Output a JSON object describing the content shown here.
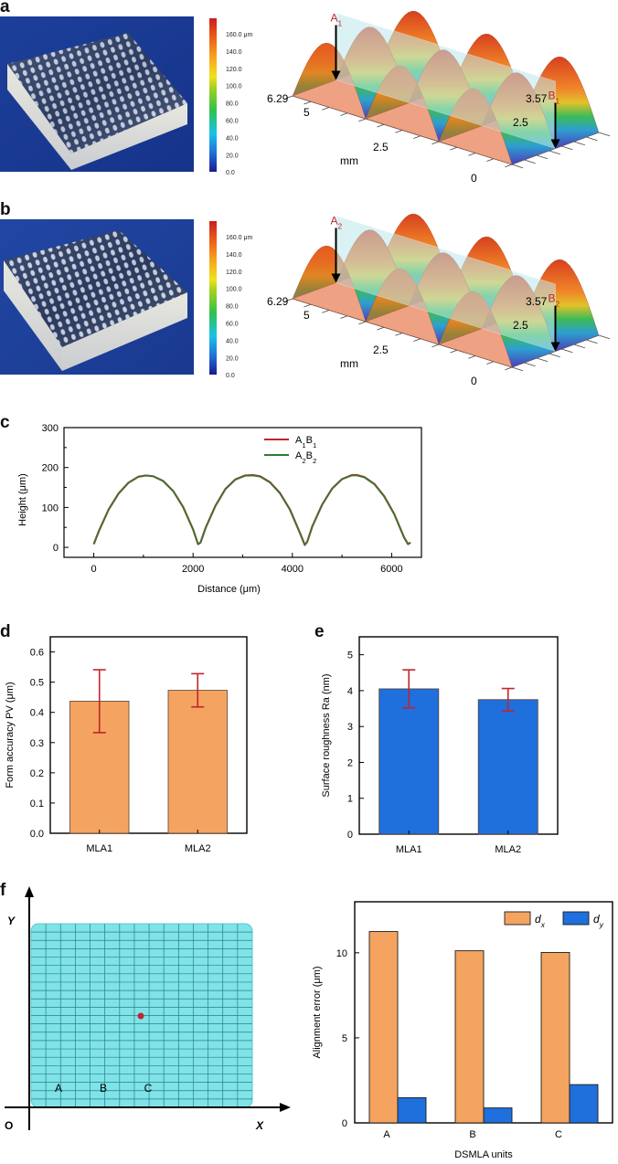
{
  "panels": {
    "a": {
      "label": "a"
    },
    "b": {
      "label": "b"
    },
    "c": {
      "label": "c"
    },
    "d": {
      "label": "d"
    },
    "e": {
      "label": "e"
    },
    "f": {
      "label": "f"
    }
  },
  "colorbar": {
    "unit": "μm",
    "ticks": [
      "160.0 μm",
      "140.0",
      "120.0",
      "100.0",
      "80.0",
      "60.0",
      "40.0",
      "20.0",
      "0.0"
    ],
    "range": [
      0,
      170
    ],
    "colors": [
      "#1a1a8c",
      "#1f6fd8",
      "#19c3e8",
      "#2fc24a",
      "#a4d21c",
      "#f1e11b",
      "#f7a21b",
      "#ec5a1a",
      "#c81e1e"
    ]
  },
  "surface_a": {
    "start_label": "A",
    "start_sub": "1",
    "end_label": "B",
    "end_sub": "1",
    "x_ticks": [
      "6.29",
      "5",
      "2.5"
    ],
    "y_ticks": [
      "3.57",
      "2.5",
      "0"
    ],
    "axis_unit": "mm"
  },
  "surface_b": {
    "start_label": "A",
    "start_sub": "2",
    "end_label": "B",
    "end_sub": "2",
    "x_ticks": [
      "6.29",
      "5",
      "2.5"
    ],
    "y_ticks": [
      "3.57",
      "2.5",
      "0"
    ],
    "axis_unit": "mm"
  },
  "chart_data": [
    {
      "id": "c",
      "type": "line",
      "title": "",
      "xlabel": "Distance (μm)",
      "ylabel": "Height (μm)",
      "xlim": [
        -600,
        6600
      ],
      "ylim": [
        -25,
        300
      ],
      "xticks": [
        0,
        2000,
        4000,
        6000
      ],
      "yticks": [
        0,
        100,
        200,
        300
      ],
      "legend": "top-center",
      "series": [
        {
          "name": "A1B1",
          "name_main1": "A",
          "name_sub1": "1",
          "name_main2": "B",
          "name_sub2": "1",
          "color": "#c0262c",
          "x": [
            0,
            100,
            300,
            500,
            700,
            900,
            1050,
            1200,
            1400,
            1600,
            1800,
            2000,
            2100,
            2150,
            2250,
            2450,
            2650,
            2850,
            3050,
            3200,
            3350,
            3550,
            3750,
            3950,
            4150,
            4250,
            4300,
            4400,
            4600,
            4800,
            5000,
            5200,
            5300,
            5450,
            5650,
            5850,
            6050,
            6250,
            6330,
            6380
          ],
          "y": [
            8,
            40,
            95,
            135,
            162,
            177,
            180,
            178,
            166,
            141,
            101,
            45,
            8,
            12,
            48,
            104,
            146,
            170,
            180,
            181,
            178,
            163,
            136,
            95,
            37,
            6,
            14,
            52,
            107,
            147,
            171,
            181,
            181,
            176,
            159,
            128,
            84,
            25,
            8,
            12
          ]
        },
        {
          "name": "A2B2",
          "name_main1": "A",
          "name_sub1": "2",
          "name_main2": "B",
          "name_sub2": "2",
          "color": "#2e7d32",
          "x": [
            0,
            100,
            300,
            500,
            700,
            900,
            1050,
            1200,
            1400,
            1600,
            1800,
            2000,
            2100,
            2150,
            2250,
            2450,
            2650,
            2850,
            3050,
            3200,
            3350,
            3550,
            3750,
            3950,
            4150,
            4250,
            4300,
            4400,
            4600,
            4800,
            5000,
            5200,
            5300,
            5450,
            5650,
            5850,
            6050,
            6250,
            6330,
            6380
          ],
          "y": [
            8,
            40,
            95,
            135,
            162,
            177,
            180,
            178,
            166,
            141,
            101,
            45,
            8,
            12,
            48,
            104,
            146,
            170,
            179,
            180,
            177,
            162,
            135,
            94,
            36,
            6,
            14,
            52,
            107,
            147,
            171,
            180,
            180,
            175,
            158,
            127,
            83,
            24,
            8,
            11
          ]
        }
      ]
    },
    {
      "id": "d",
      "type": "bar",
      "title": "",
      "xlabel": "",
      "ylabel": "Form accuracy PV (μm)",
      "categories": [
        "MLA1",
        "MLA2"
      ],
      "values": [
        0.437,
        0.473
      ],
      "errors_low": [
        0.333,
        0.418
      ],
      "errors_high": [
        0.541,
        0.528
      ],
      "ylim": [
        0,
        0.65
      ],
      "yticks": [
        "0.0",
        "0.1",
        "0.2",
        "0.3",
        "0.4",
        "0.5",
        "0.6"
      ],
      "bar_color": "#f4a460",
      "error_color": "#c0262c"
    },
    {
      "id": "e",
      "type": "bar",
      "title": "",
      "xlabel": "",
      "ylabel": "Surface roughness Ra (nm)",
      "categories": [
        "MLA1",
        "MLA2"
      ],
      "values": [
        4.05,
        3.75
      ],
      "errors_low": [
        3.52,
        3.43
      ],
      "errors_high": [
        4.58,
        4.06
      ],
      "ylim": [
        0,
        5.5
      ],
      "yticks": [
        "0",
        "1",
        "2",
        "3",
        "4",
        "5"
      ],
      "bar_color": "#1f6fdc",
      "error_color": "#c0262c"
    },
    {
      "id": "f",
      "type": "bar",
      "title": "",
      "xlabel": "DSMLA units",
      "ylabel": "Alignment error (μm)",
      "categories": [
        "A",
        "B",
        "C"
      ],
      "series": [
        {
          "name": "dx",
          "name_main": "d",
          "name_sub": "x",
          "values": [
            11.25,
            10.12,
            10.02
          ],
          "color": "#f4a460"
        },
        {
          "name": "dy",
          "name_main": "d",
          "name_sub": "y",
          "values": [
            1.48,
            0.88,
            2.25
          ],
          "color": "#1f6fdc"
        }
      ],
      "ylim": [
        0,
        13
      ],
      "yticks": [
        "0",
        "5",
        "10"
      ],
      "legend": "top-right"
    }
  ],
  "diagram_f": {
    "y_axis_label": "Y",
    "x_axis_label": "X",
    "origin_label": "O",
    "unit_labels": [
      "A",
      "B",
      "C"
    ],
    "grid_color": "#7fe3e8",
    "marker_color": "#c0262c"
  }
}
